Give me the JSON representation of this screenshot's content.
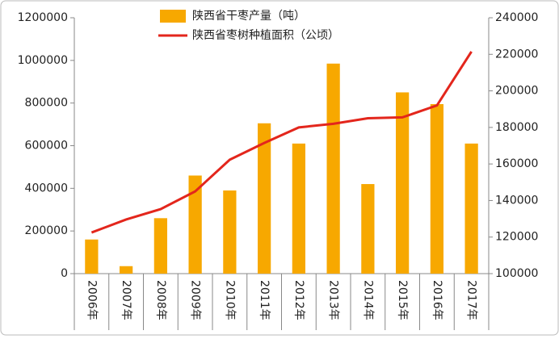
{
  "chart_data": {
    "type": "bar-line",
    "categories": [
      "2006年",
      "2007年",
      "2008年",
      "2009年",
      "2010年",
      "2011年",
      "2012年",
      "2013年",
      "2014年",
      "2015年",
      "2016年",
      "2017年"
    ],
    "series": [
      {
        "name": "陕西省干枣产量（吨）",
        "type": "bar",
        "color": "#f7a800",
        "values": [
          160000,
          35000,
          260000,
          460000,
          390000,
          705000,
          610000,
          985000,
          420000,
          850000,
          795000,
          610000
        ]
      },
      {
        "name": "陕西省枣树种植面积（公顷）",
        "type": "line",
        "axis": "y2",
        "color": "#e3261c",
        "values": [
          122500,
          129600,
          135300,
          145000,
          162300,
          171500,
          180000,
          182000,
          185000,
          185500,
          192000,
          221500
        ]
      }
    ],
    "ylim": [
      0,
      1200000
    ],
    "yticks": [
      0,
      200000,
      400000,
      600000,
      800000,
      1000000,
      1200000
    ],
    "y2lim": [
      100000,
      240000
    ],
    "y2ticks": [
      100000,
      120000,
      140000,
      160000,
      180000,
      200000,
      220000,
      240000
    ],
    "grid": false,
    "legend": "top"
  }
}
